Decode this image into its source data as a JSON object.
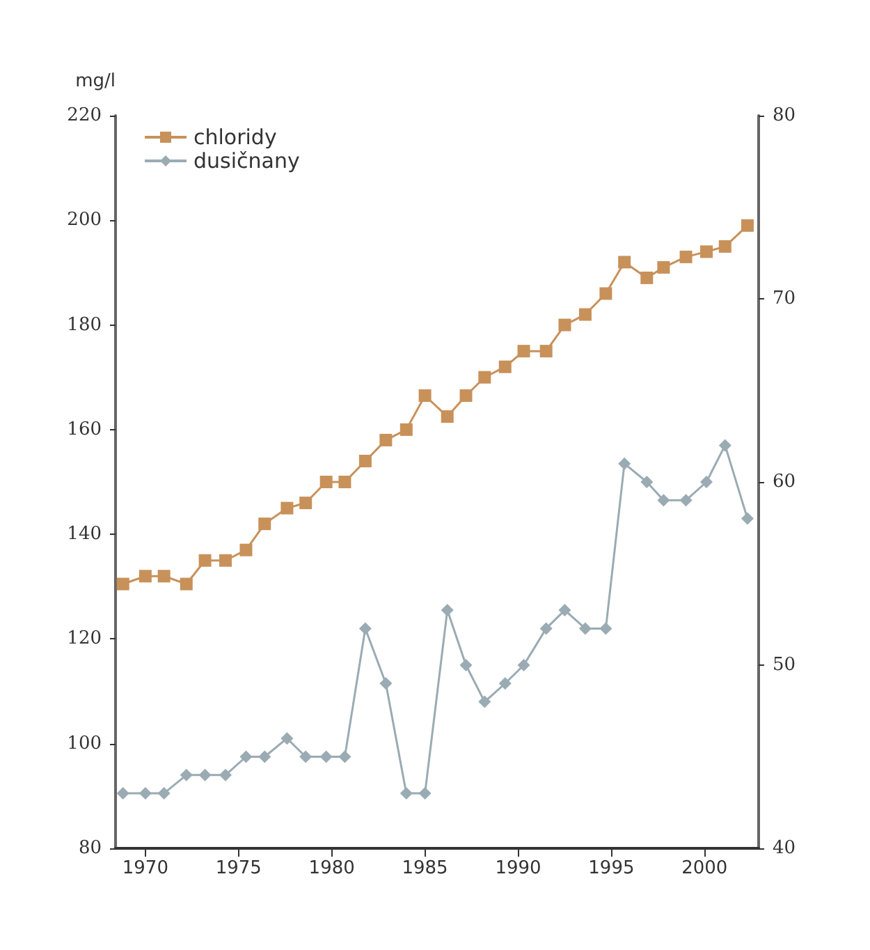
{
  "chart_data": {
    "type": "line",
    "ylabel": "mg/l",
    "x": [
      1968.8,
      1970.0,
      1971.0,
      1972.2,
      1973.2,
      1974.3,
      1975.4,
      1976.4,
      1977.6,
      1978.6,
      1979.7,
      1980.7,
      1981.8,
      1982.9,
      1984.0,
      1985.0,
      1986.2,
      1987.2,
      1988.2,
      1989.3,
      1990.3,
      1991.5,
      1992.5,
      1993.6,
      1994.7,
      1995.7,
      1996.9,
      1997.8,
      1999.0,
      2000.1,
      2001.1,
      2002.3
    ],
    "series": [
      {
        "name": "chloridy",
        "color": "#c8915a",
        "marker": "square",
        "values": [
          130.5,
          132,
          132,
          130.5,
          135,
          135,
          137,
          142,
          145,
          146,
          150,
          150,
          154,
          158,
          160,
          166.5,
          162.5,
          166.5,
          170,
          172,
          175,
          175,
          180,
          182,
          186,
          192,
          189,
          191,
          193,
          194,
          195,
          199
        ]
      },
      {
        "name": "dusičnany",
        "color": "#9aabb3",
        "marker": "diamond",
        "axis": "y2",
        "values": [
          43,
          43,
          43,
          44,
          44,
          44,
          45,
          45,
          46,
          45,
          45,
          45,
          52,
          49,
          43,
          43,
          53,
          50,
          48,
          49,
          50,
          52,
          53,
          52,
          52,
          61,
          60,
          59,
          59,
          60,
          62,
          58
        ]
      }
    ],
    "xlim": [
      1968.4,
      2002.9
    ],
    "xticks": [
      1970,
      1975,
      1980,
      1985,
      1990,
      1995,
      2000
    ],
    "ylim": [
      80,
      220
    ],
    "yticks": [
      80,
      100,
      120,
      140,
      160,
      180,
      200,
      220
    ],
    "y2lim": [
      40,
      80
    ],
    "y2ticks": [
      40,
      50,
      60,
      70,
      80
    ],
    "grid": false,
    "legend": "top left",
    "line_style": "solid"
  }
}
